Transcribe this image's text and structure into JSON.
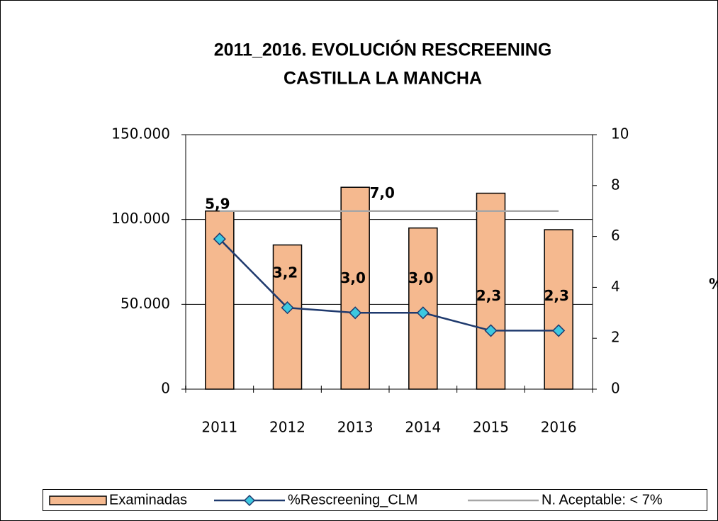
{
  "chart_data": {
    "type": "bar-line",
    "title": [
      "2011_2016. EVOLUCIÓN RESCREENING",
      "CASTILLA LA MANCHA"
    ],
    "y2label": "%",
    "categories": [
      "2011",
      "2012",
      "2013",
      "2014",
      "2015",
      "2016"
    ],
    "series": [
      {
        "name": "Examinadas",
        "type": "bar",
        "color": "#f5b98f",
        "values": [
          105000,
          85000,
          119000,
          95000,
          115500,
          94000
        ]
      },
      {
        "name": "%Rescreening_CLM",
        "type": "line",
        "axis": "y2",
        "color": "#1f3a6e",
        "marker_color": "#3cc8e0",
        "values": [
          5.9,
          3.2,
          3.0,
          3.0,
          2.3,
          2.3
        ],
        "value_labels": [
          "5,9",
          "3,2",
          "3,0",
          "3,0",
          "2,3",
          "2,3"
        ]
      },
      {
        "name": "N. Aceptable: < 7%",
        "type": "line",
        "axis": "y2",
        "color": "#a6a6a6",
        "values": [
          7,
          7,
          7,
          7,
          7,
          7
        ],
        "value_labels": [
          null,
          null,
          "7,0",
          null,
          null,
          null
        ]
      }
    ],
    "ylim": [
      0,
      150000
    ],
    "yticks": [
      0,
      {
        "value": 50000,
        "label": "50.000"
      },
      {
        "value": 100000,
        "label": "100.000"
      },
      {
        "value": 150000,
        "label": "150.000"
      }
    ],
    "y2lim": [
      0,
      10
    ],
    "y2ticks": [
      0,
      2,
      4,
      6,
      8,
      10
    ],
    "grid": true,
    "legend": "bottom"
  }
}
